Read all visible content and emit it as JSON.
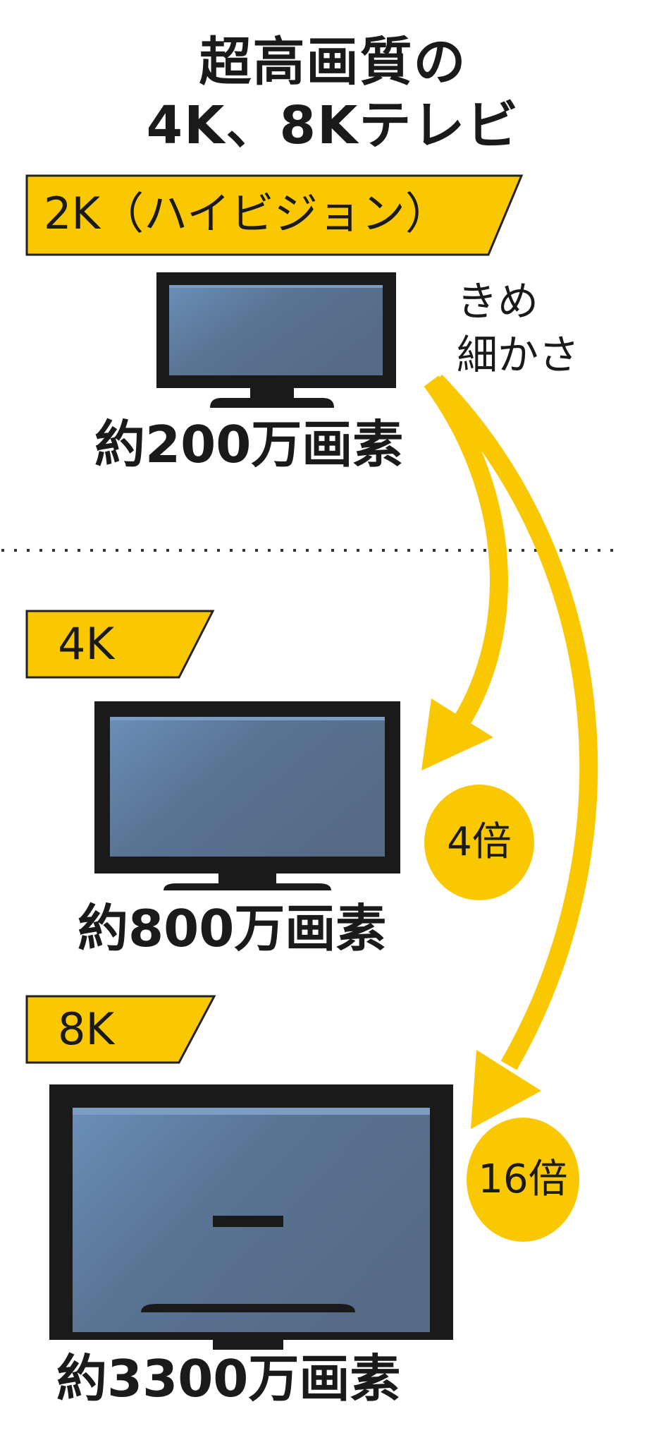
{
  "title": {
    "line1": "超高画質の",
    "line2": "4K、8Kテレビ"
  },
  "colors": {
    "yellow": "#F9C800",
    "tv_frame": "#1a1a1a",
    "screen_light": "#6a8fb8",
    "screen_dark": "#566a86"
  },
  "sections": [
    {
      "banner": "2K（ハイビジョン）",
      "pixels": "約200万画素"
    },
    {
      "banner": "4K",
      "pixels": "約800万画素"
    },
    {
      "banner": "8K",
      "pixels": "約3300万画素"
    }
  ],
  "detail_label": {
    "line1": "きめ",
    "line2": "細かさ"
  },
  "multipliers": [
    {
      "text": "4倍"
    },
    {
      "text": "16倍"
    }
  ],
  "icons": [
    "tv-icon",
    "arrow-icon"
  ]
}
